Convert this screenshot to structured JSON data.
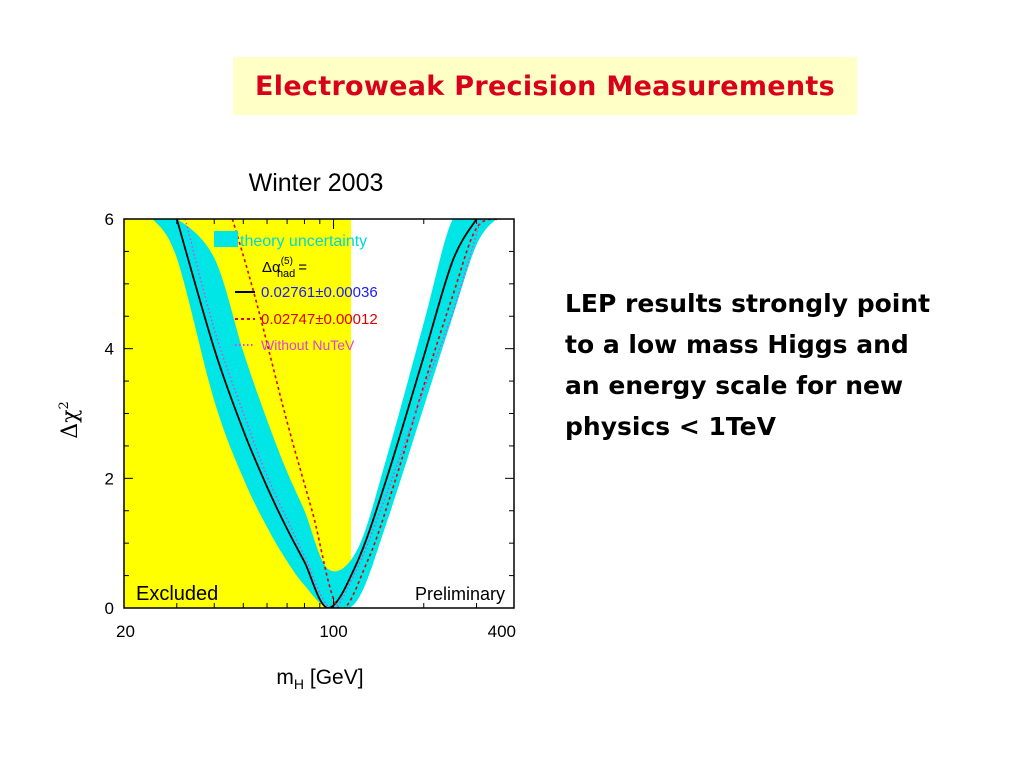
{
  "slide": {
    "title": "Electroweak Precision Measurements",
    "caption_lines": [
      "LEP results strongly point",
      "to a low mass Higgs and",
      "an energy scale for new",
      "physics < 1TeV"
    ]
  },
  "colors": {
    "title_text": "#d9001b",
    "title_box": "#ffffc6",
    "excluded_region": "#ffff00",
    "theory_band": "#00e5e5",
    "nominal_curve": "#000000",
    "alt_alpha_curve": "#e00000",
    "no_nutev_curve": "#e040e0",
    "legend_theory_text": "#00d8d8",
    "legend_nominal_text": "#1a1aff"
  },
  "chart_data": {
    "type": "line",
    "title": "Winter 2003",
    "xlabel": "m_H [GeV]",
    "xlabel_main": "m",
    "xlabel_sub": "H",
    "xlabel_unit": "[GeV]",
    "ylabel": "Δχ²",
    "ylabel_main": "Δχ",
    "ylabel_sup": "2",
    "x_scale": "log",
    "xlim": [
      20,
      400
    ],
    "ylim": [
      0,
      6
    ],
    "x_ticks": [
      20,
      100,
      400
    ],
    "y_ticks": [
      0,
      2,
      4,
      6
    ],
    "excluded_region": {
      "x": [
        20,
        114.4
      ],
      "label": "Excluded"
    },
    "preliminary_label": "Preliminary",
    "legend": {
      "theory": "theory uncertainty",
      "header_main": "Δα",
      "header_sup": "(5)",
      "header_sub": "had",
      "header_eq": "=",
      "nominal": "0.02761±0.00036",
      "alt": "0.02747±0.00012",
      "no_nutev": "Without NuTeV"
    },
    "series": [
      {
        "name": "0.02761±0.00036",
        "style": "solid",
        "x": [
          30,
          40,
          50,
          60,
          70,
          80,
          96,
          120,
          150,
          200,
          250,
          300
        ],
        "y": [
          6.0,
          4.0,
          2.74,
          1.87,
          1.22,
          0.71,
          0.0,
          0.71,
          1.98,
          3.88,
          5.36,
          6.0
        ]
      },
      {
        "name": "0.02747±0.00012",
        "style": "dashed",
        "x": [
          46,
          55,
          70,
          85,
          104,
          130,
          160,
          200,
          250,
          300,
          360
        ],
        "y": [
          6.0,
          4.76,
          2.87,
          1.48,
          0.0,
          0.73,
          1.94,
          3.43,
          4.82,
          5.86,
          6.0
        ]
      },
      {
        "name": "Without NuTeV",
        "style": "dotted",
        "x": [
          32,
          40,
          50,
          60,
          70,
          80,
          98,
          120,
          150,
          200,
          250,
          310
        ],
        "y": [
          6.0,
          4.3,
          3.01,
          2.04,
          1.37,
          0.8,
          0.0,
          0.62,
          1.75,
          3.36,
          4.56,
          6.0
        ]
      }
    ],
    "theory_band": {
      "x": [
        25,
        30,
        40,
        50,
        60,
        70,
        80,
        96,
        120,
        150,
        200,
        250,
        300,
        350,
        380
      ],
      "upper": [
        6.0,
        6.0,
        5.4,
        3.95,
        2.9,
        2.1,
        1.5,
        0.6,
        0.9,
        2.3,
        4.4,
        6.0,
        6.0,
        6.0,
        6.0
      ],
      "lower": [
        6.0,
        5.4,
        3.2,
        2.0,
        1.25,
        0.72,
        0.35,
        0.0,
        0.12,
        1.3,
        3.1,
        4.5,
        5.6,
        6.0,
        6.0
      ]
    }
  }
}
